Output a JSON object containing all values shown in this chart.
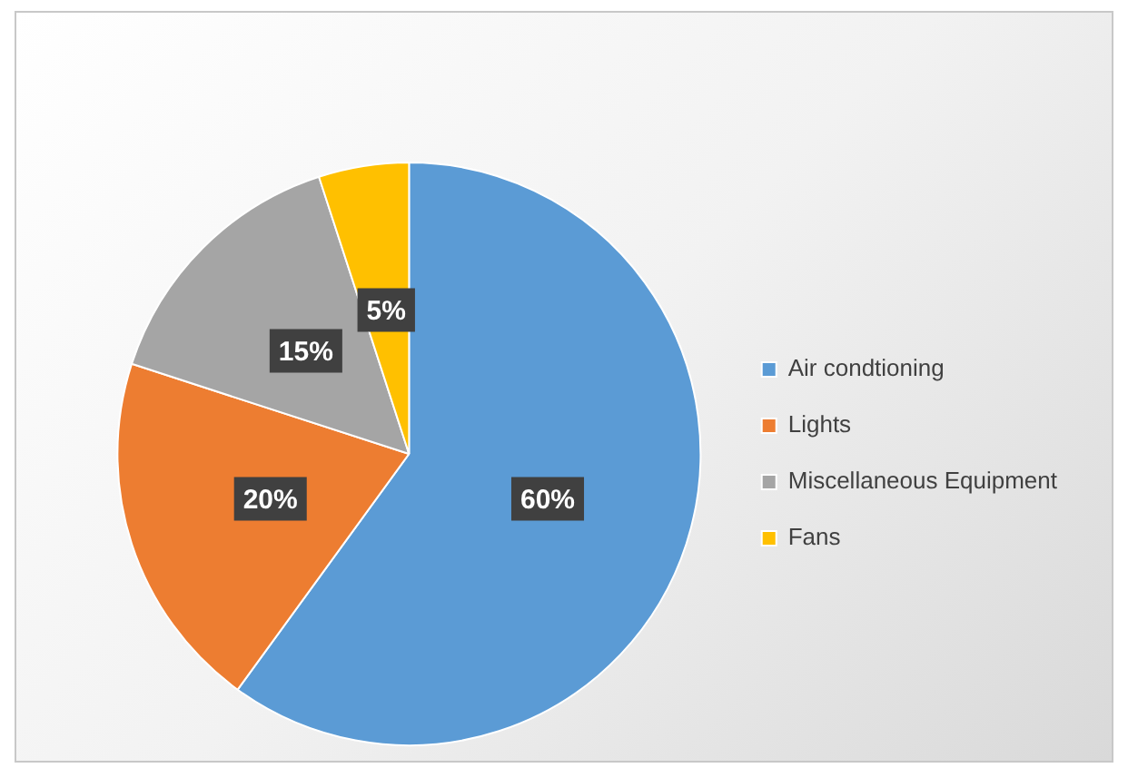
{
  "chart_data": {
    "type": "pie",
    "categories": [
      "Air condtioning",
      "Lights",
      "Miscellaneous Equipment",
      "Fans"
    ],
    "values": [
      60,
      20,
      15,
      5
    ],
    "colors": [
      "#5b9bd5",
      "#ed7d31",
      "#a5a5a5",
      "#ffc000"
    ],
    "value_labels": [
      "60%",
      "20%",
      "15%",
      "5%"
    ],
    "legend": "right"
  }
}
